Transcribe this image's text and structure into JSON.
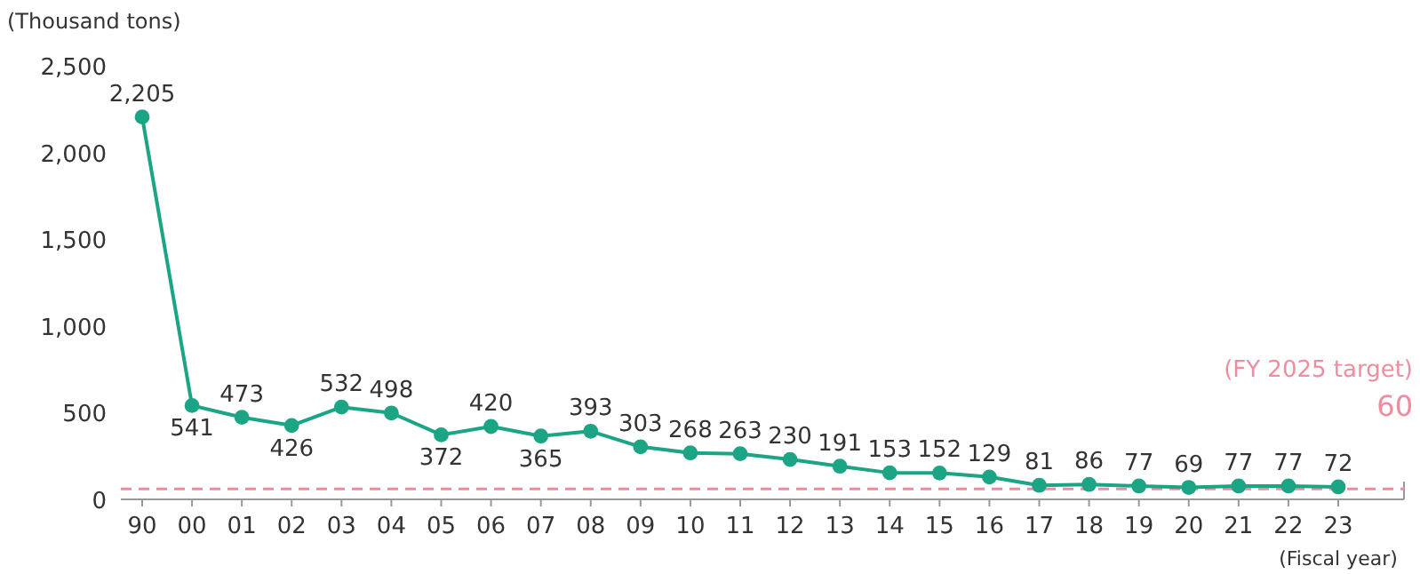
{
  "chart_data": {
    "type": "line",
    "ylabel": "(Thousand tons)",
    "xlabel": "(Fiscal year)",
    "categories": [
      "90",
      "00",
      "01",
      "02",
      "03",
      "04",
      "05",
      "06",
      "07",
      "08",
      "09",
      "10",
      "11",
      "12",
      "13",
      "14",
      "15",
      "16",
      "17",
      "18",
      "19",
      "20",
      "21",
      "22",
      "23"
    ],
    "series": [
      {
        "color": "#1ba585",
        "values": [
          2205,
          541,
          473,
          426,
          532,
          498,
          372,
          420,
          365,
          393,
          303,
          268,
          263,
          230,
          191,
          153,
          152,
          129,
          81,
          86,
          77,
          69,
          77,
          77,
          72
        ]
      }
    ],
    "ylim": [
      0,
      2500
    ],
    "yticks": [
      0,
      {
        "value": 500,
        "label": "500"
      },
      {
        "value": 1000,
        "label": "1,000"
      },
      {
        "value": 1500,
        "label": "1,500"
      },
      {
        "value": 2000,
        "label": "2,000"
      },
      {
        "value": 2500,
        "label": "2,500"
      }
    ],
    "ref_lines": [
      {
        "axis": "y",
        "value": 60,
        "label": "(FY 2025 target)",
        "color": "#f08ca0",
        "line_style": "dashed"
      }
    ],
    "annotations": [
      {
        "text": "60",
        "y": 60
      }
    ],
    "value_labels": [
      "2,205",
      "541",
      "473",
      "426",
      "532",
      "498",
      "372",
      "420",
      "365",
      "393",
      "303",
      "268",
      "263",
      "230",
      "191",
      "153",
      "152",
      "129",
      "81",
      "86",
      "77",
      "69",
      "77",
      "77",
      "72"
    ],
    "marker": "circle",
    "line_style": "solid"
  }
}
